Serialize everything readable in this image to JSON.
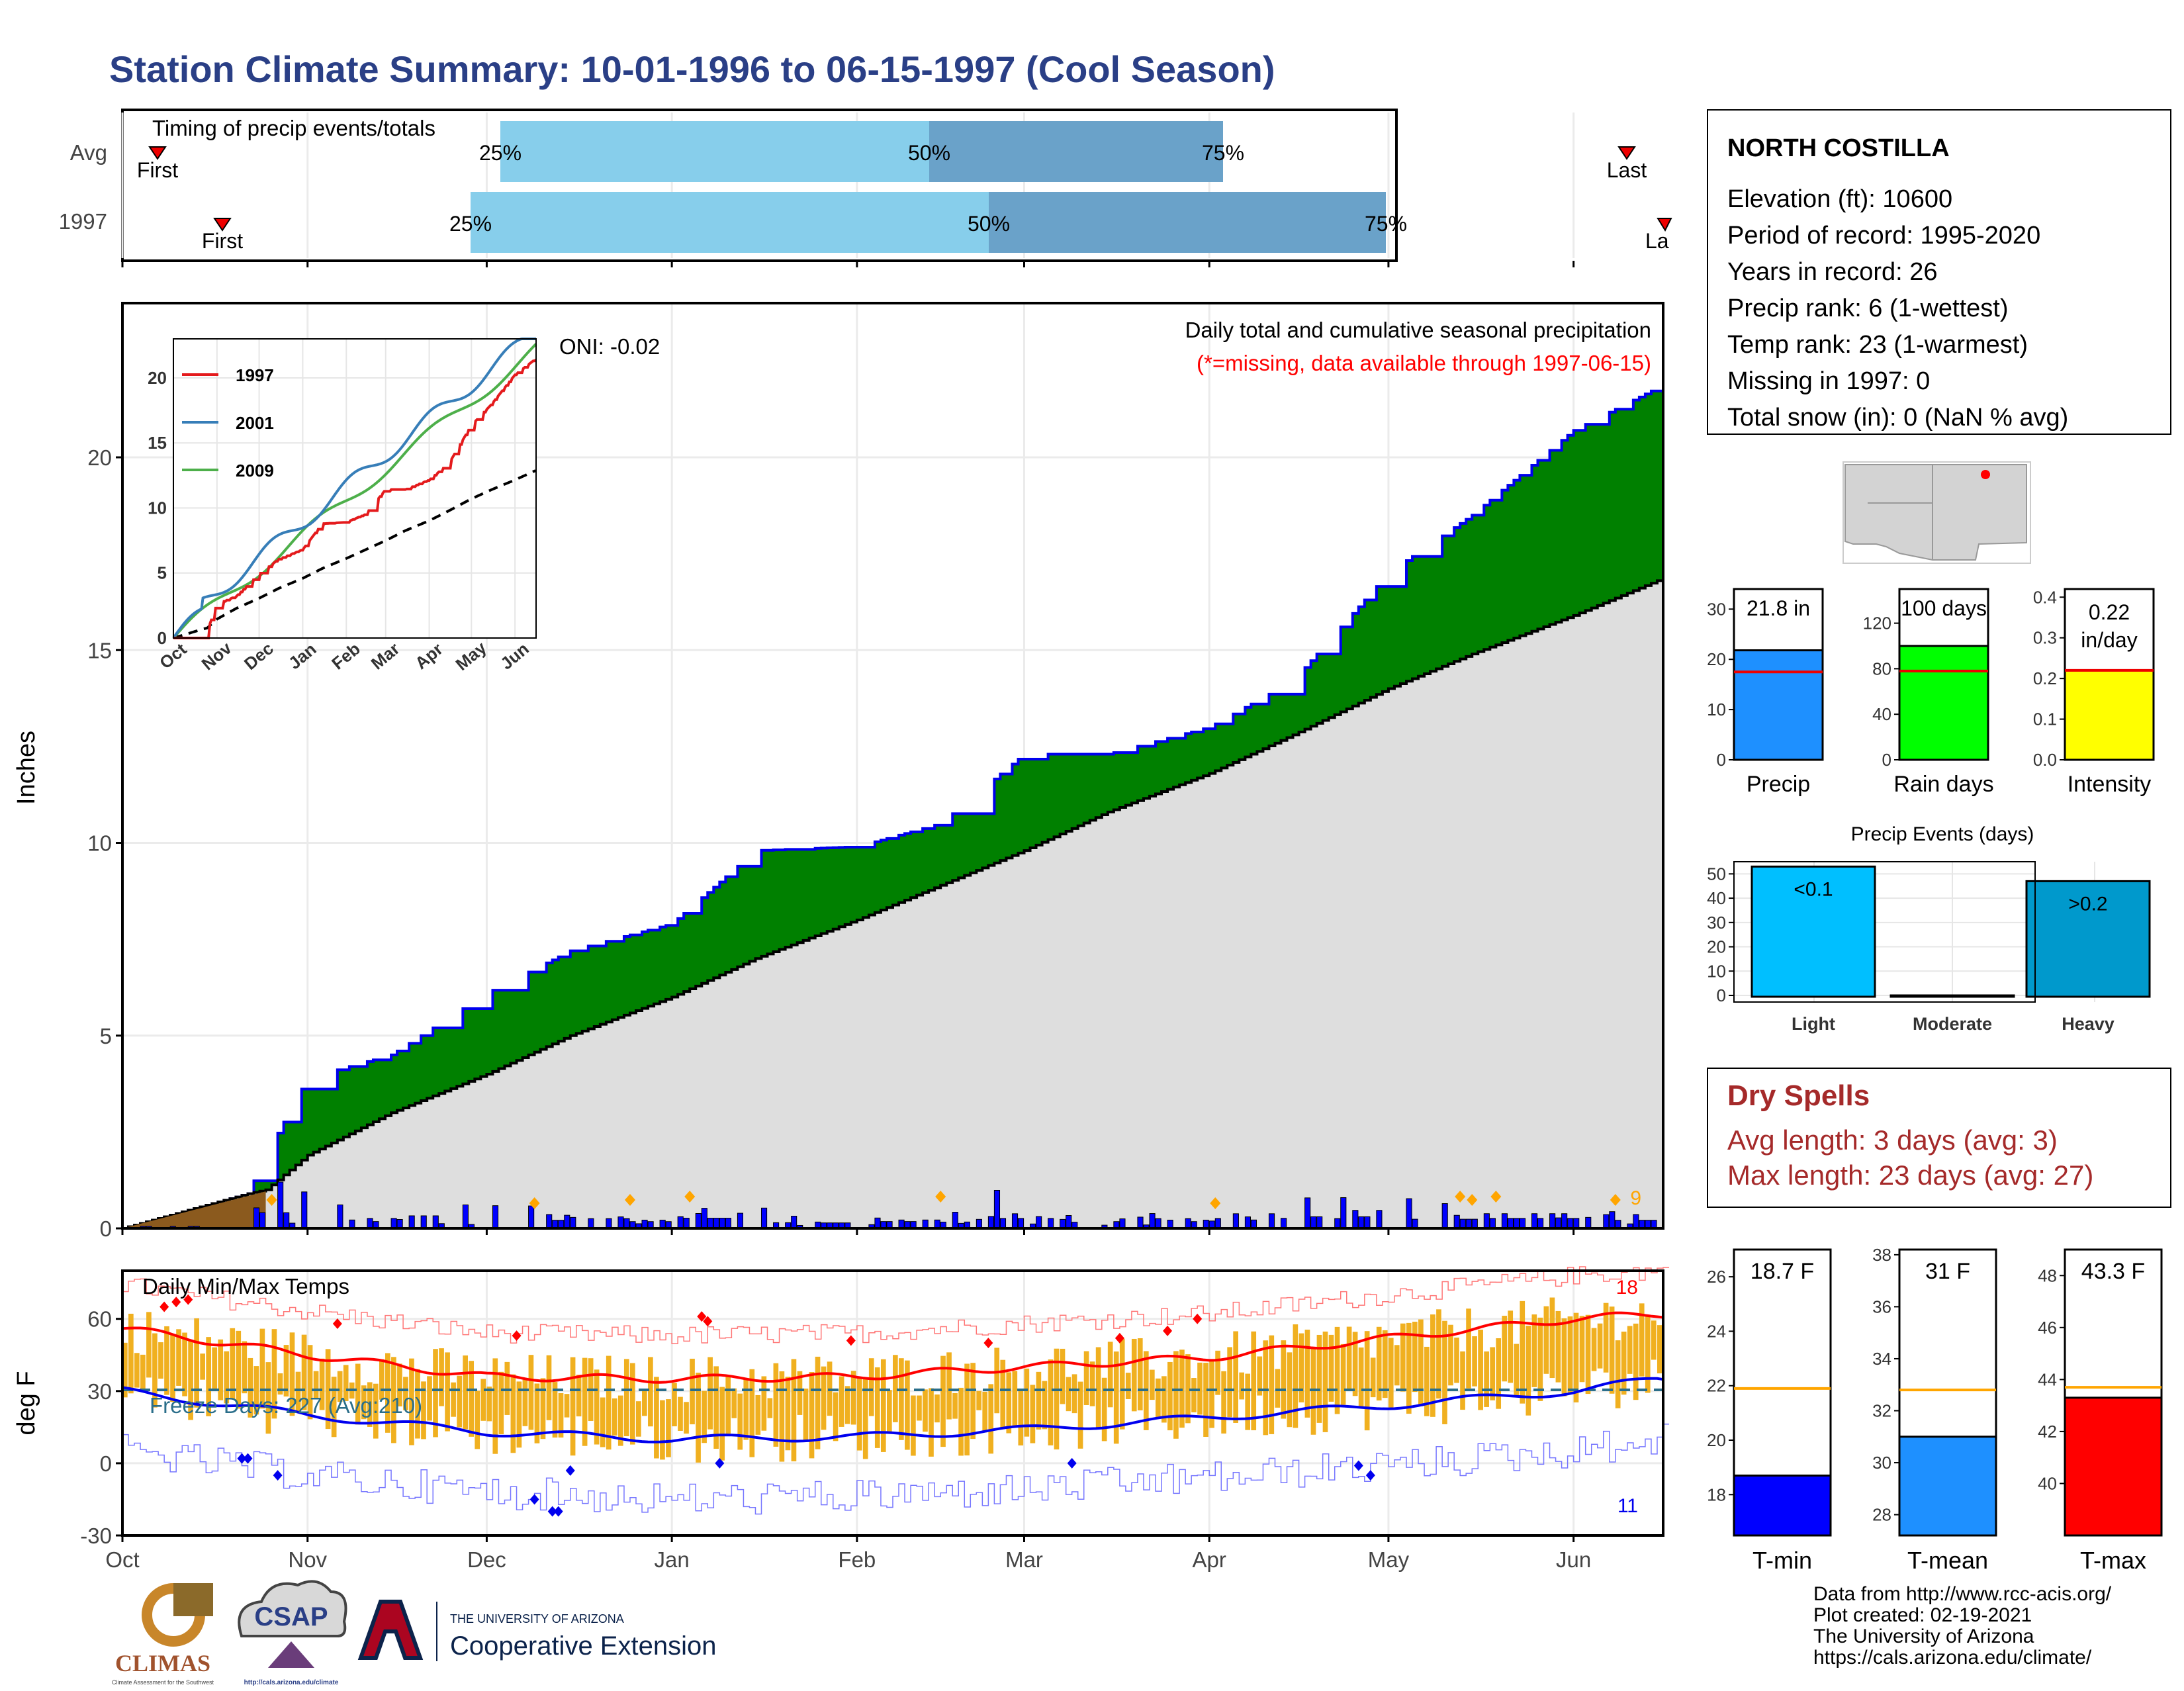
{
  "title": "Station Climate Summary: 10-01-1996 to 06-15-1997 (Cool Season)",
  "colors": {
    "title": "#2a3f86",
    "precip_green": "#008000",
    "avg_fill": "#dedede",
    "bar_blue": "#0000ff",
    "light_blue": "#87ceeb",
    "mid_blue": "#6aa2c9",
    "temp_bar": "#f0b020",
    "tmax_line": "#ff0000",
    "tmin_line": "#0000ff",
    "freeze_line": "#2a6e8a",
    "dry_spells": "#a52a2a"
  },
  "timing": {
    "title": "Timing of precip events/totals",
    "rows": [
      "Avg",
      "1997"
    ],
    "avg": {
      "first_label": "First",
      "last_label": "Last",
      "q25_label": "25%",
      "q50_label": "50%",
      "q75_label": "75%"
    },
    "y1997": {
      "first_label": "First",
      "last_label": "La",
      "q25_label": "25%",
      "q50_label": "50%",
      "q75_label": "75%"
    }
  },
  "precip_panel": {
    "ylabel": "Inches",
    "yticks": [
      "0",
      "5",
      "10",
      "15",
      "20"
    ],
    "oni_label": "ONI: -0.02",
    "title_line": "Daily total and cumulative seasonal precipitation",
    "missing_line": "(*=missing, data available through 1997-06-15)",
    "count_label": "9",
    "inset": {
      "yticks": [
        "0",
        "5",
        "10",
        "15",
        "20"
      ],
      "months": [
        "Oct",
        "Nov",
        "Dec",
        "Jan",
        "Feb",
        "Mar",
        "Apr",
        "May",
        "Jun"
      ],
      "legend": [
        {
          "name": "1997",
          "color": "#e41a1c"
        },
        {
          "name": "2001",
          "color": "#377eb8"
        },
        {
          "name": "2009",
          "color": "#4daf4a"
        }
      ]
    }
  },
  "temp_panel": {
    "ylabel": "deg F",
    "title": "Daily Min/Max Temps",
    "yticks": [
      "-30",
      "0",
      "30",
      "60"
    ],
    "freeze_label": "Freeze Days: 227 (Avg:210)",
    "max_count": "18",
    "min_count": "11"
  },
  "months": [
    "Oct",
    "Nov",
    "Dec",
    "Jan",
    "Feb",
    "Mar",
    "Apr",
    "May",
    "Jun"
  ],
  "station_box": {
    "name": "NORTH COSTILLA",
    "lines": [
      "Elevation (ft): 10600",
      "Period of record: 1995-2020",
      "Years in record: 26",
      "Precip rank: 6 (1-wettest)",
      "Temp rank: 23 (1-warmest)",
      "Missing in 1997: 0",
      "Total snow (in): 0 (NaN % avg)"
    ]
  },
  "summary_bars": [
    {
      "label": "Precip",
      "value_text": "21.8 in",
      "color": "#1e90ff",
      "value": 21.8,
      "avg": 17.5,
      "ymax": 34,
      "ticks": [
        "0",
        "10",
        "20",
        "30"
      ]
    },
    {
      "label": "Rain days",
      "value_text": "100 days",
      "color": "#00ff00",
      "value": 100,
      "avg": 78,
      "ymax": 150,
      "ticks": [
        "0",
        "40",
        "80",
        "120"
      ]
    },
    {
      "label": "Intensity",
      "value_text": "0.22 in/day",
      "value_line1": "0.22",
      "value_line2": "in/day",
      "color": "#ffff00",
      "value": 0.22,
      "avg": 0.22,
      "ymax": 0.42,
      "ticks": [
        "0.0",
        "0.1",
        "0.2",
        "0.3",
        "0.4"
      ]
    }
  ],
  "events": {
    "title": "Precip Events (days)",
    "categories": [
      "Light",
      "Moderate",
      "Heavy"
    ],
    "values": [
      53,
      0,
      47
    ],
    "labels": [
      "<0.1",
      "",
      ">0.2"
    ],
    "colors": [
      "#00bfff",
      "#1e90ff",
      "#0099cc"
    ],
    "ticks": [
      "0",
      "10",
      "20",
      "30",
      "40",
      "50"
    ]
  },
  "dry_spells": {
    "title": "Dry Spells",
    "avg_line": "Avg length: 3 days (avg: 3)",
    "max_line": "Max length: 23 days (avg: 27)"
  },
  "temp_bars": [
    {
      "label": "T-min",
      "value_text": "18.7 F",
      "color": "#0000ff",
      "value": 18.7,
      "avg": 21.9,
      "ymin": 16.5,
      "ymax": 27,
      "ticks": [
        "18",
        "20",
        "22",
        "24",
        "26"
      ]
    },
    {
      "label": "T-mean",
      "value_text": "31 F",
      "color": "#1e90ff",
      "value": 31.0,
      "avg": 32.8,
      "ymin": 27.2,
      "ymax": 38.2,
      "ticks": [
        "28",
        "30",
        "32",
        "34",
        "36",
        "38"
      ]
    },
    {
      "label": "T-max",
      "value_text": "43.3 F",
      "color": "#ff0000",
      "value": 43.3,
      "avg": 43.7,
      "ymin": 38.0,
      "ymax": 49.0,
      "ticks": [
        "40",
        "42",
        "44",
        "46",
        "48"
      ]
    }
  ],
  "footer": {
    "source_lines": [
      "Data from http://www.rcc-acis.org/",
      "Plot created: 02-19-2021",
      "The University of Arizona",
      "https://cals.arizona.edu/climate/"
    ],
    "climas": "CLIMAS",
    "climas_sub": "Climate Assessment for the Southwest",
    "csap": "CSAP",
    "csap_url": "http://cals.arizona.edu/climate",
    "ua_small": "THE UNIVERSITY OF ARIZONA",
    "ua_big": "Cooperative Extension"
  },
  "chart_data": [
    {
      "type": "line",
      "title": "Daily total and cumulative seasonal precipitation",
      "ylabel": "Inches",
      "ylim": [
        0,
        24
      ],
      "x": [
        "1996-10-01",
        "1996-10-22",
        "1996-10-25",
        "1996-11-01",
        "1996-11-15",
        "1996-12-01",
        "1996-12-15",
        "1997-01-01",
        "1997-01-15",
        "1997-02-01",
        "1997-02-15",
        "1997-03-01",
        "1997-03-15",
        "1997-04-01",
        "1997-04-15",
        "1997-05-01",
        "1997-05-15",
        "1997-06-01",
        "1997-06-15"
      ],
      "series": [
        {
          "name": "1997",
          "values": [
            0,
            0.9,
            1.9,
            3.9,
            4.5,
            6.1,
            7.2,
            7.9,
            9.8,
            9.9,
            10.5,
            12.3,
            12.3,
            13.0,
            14.2,
            17.0,
            18.5,
            20.7,
            21.8
          ]
        },
        {
          "name": "Avg",
          "values": [
            0,
            0.9,
            1.0,
            1.9,
            3.0,
            4.0,
            5.0,
            6.0,
            7.0,
            8.0,
            8.9,
            9.8,
            10.8,
            11.8,
            12.8,
            14.0,
            14.9,
            15.9,
            16.8
          ]
        }
      ]
    },
    {
      "type": "line",
      "title": "Daily Min/Max Temps",
      "ylabel": "deg F",
      "ylim": [
        -30,
        80
      ],
      "x": [
        "1996-10-01",
        "1996-11-01",
        "1996-12-01",
        "1997-01-01",
        "1997-02-01",
        "1997-03-01",
        "1997-04-01",
        "1997-05-01",
        "1997-06-01",
        "1997-06-15"
      ],
      "series": [
        {
          "name": "Avg Tmax",
          "values": [
            56,
            45,
            36,
            35,
            36,
            40,
            44,
            52,
            60,
            62
          ]
        },
        {
          "name": "Avg Tmin",
          "values": [
            30,
            20,
            13,
            10,
            11,
            14,
            19,
            24,
            30,
            35
          ]
        }
      ]
    },
    {
      "type": "bar",
      "title": "Precip Events (days)",
      "categories": [
        "Light",
        "Moderate",
        "Heavy"
      ],
      "values": [
        53,
        0,
        47
      ]
    }
  ]
}
